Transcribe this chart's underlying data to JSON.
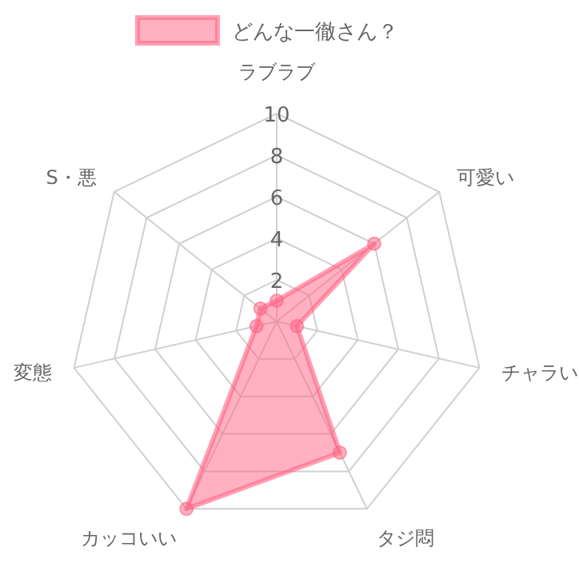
{
  "chart_data": {
    "type": "radar",
    "categories": [
      "ラブラブ",
      "可愛い",
      "チャラい",
      "タジ悶",
      "カッコいい",
      "変態",
      "S・悪"
    ],
    "series": [
      {
        "name": "どんな一徹さん？",
        "color": "#ff6384",
        "values": [
          1,
          6,
          1,
          7,
          10,
          1,
          1
        ]
      }
    ],
    "ylim": [
      0,
      10
    ],
    "yticks": [
      2,
      4,
      6,
      8,
      10
    ],
    "grid": true,
    "legend": "top",
    "marker": "circle"
  }
}
